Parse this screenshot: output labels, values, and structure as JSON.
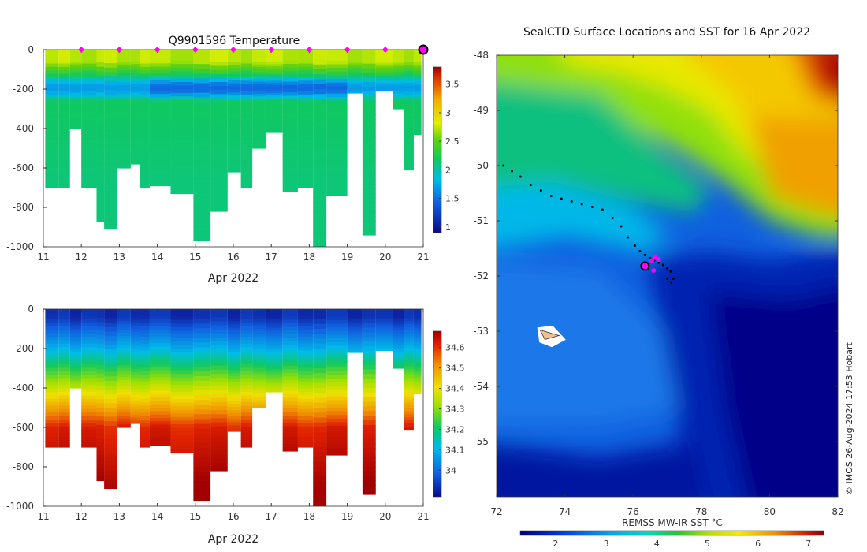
{
  "chart_data": [
    {
      "type": "heatmap",
      "title": "Q9901596  Temperature",
      "xlabel": "Apr 2022",
      "ylabel": "",
      "x_ticks": [
        "11",
        "12",
        "13",
        "14",
        "15",
        "16",
        "17",
        "18",
        "19",
        "20",
        "21"
      ],
      "y_ticks": [
        "0",
        "-200",
        "-400",
        "-600",
        "-800",
        "-1000"
      ],
      "xlim": [
        11,
        21
      ],
      "ylim": [
        -1000,
        0
      ],
      "colorbar_range": [
        0.9,
        3.8
      ],
      "colorbar_ticks": [
        "1",
        "1.5",
        "2",
        "2.5",
        "3",
        "3.5"
      ],
      "marker_days": [
        12,
        13,
        14,
        15,
        16,
        17,
        18,
        19,
        20
      ],
      "current_day": 21,
      "profile_max_depths": [
        700,
        700,
        400,
        700,
        870,
        910,
        600,
        580,
        700,
        690,
        730,
        970,
        820,
        620,
        700,
        500,
        420,
        720,
        700,
        1000,
        740,
        220,
        940,
        210,
        300,
        610,
        430
      ],
      "profile_start_days": [
        11.05,
        11.4,
        11.7,
        12,
        12.4,
        12.6,
        12.95,
        13.3,
        13.55,
        13.8,
        14.35,
        14.95,
        15.4,
        15.85,
        16.2,
        16.5,
        16.85,
        17.3,
        17.7,
        18.1,
        18.45,
        19,
        19.4,
        19.75,
        20.2,
        20.5,
        20.75
      ],
      "profile_end_days": [
        11.4,
        11.7,
        12,
        12.4,
        12.6,
        12.95,
        13.3,
        13.55,
        13.8,
        14.35,
        14.95,
        15.4,
        15.85,
        16.2,
        16.5,
        16.85,
        17.3,
        17.7,
        18.1,
        18.45,
        19,
        19.4,
        19.75,
        20.2,
        20.5,
        20.75,
        20.95
      ]
    },
    {
      "type": "heatmap",
      "title": "",
      "xlabel": "Apr 2022",
      "ylabel": "",
      "x_ticks": [
        "11",
        "12",
        "13",
        "14",
        "15",
        "16",
        "17",
        "18",
        "19",
        "20",
        "21"
      ],
      "y_ticks": [
        "0",
        "-200",
        "-400",
        "-600",
        "-800",
        "-1000"
      ],
      "xlim": [
        11,
        21
      ],
      "ylim": [
        -1000,
        0
      ],
      "colorbar_range": [
        33.87,
        34.68
      ],
      "colorbar_ticks": [
        "34",
        "34.1",
        "34.2",
        "34.3",
        "34.4",
        "34.5",
        "34.6"
      ]
    },
    {
      "type": "heatmap",
      "title": "SealCTD Surface Locations and SST for 16 Apr 2022",
      "xlabel": "",
      "ylabel": "",
      "x_ticks": [
        "72",
        "74",
        "76",
        "78",
        "80",
        "82"
      ],
      "y_ticks": [
        "-48",
        "-49",
        "-50",
        "-51",
        "-52",
        "-53",
        "-54",
        "-55"
      ],
      "xlim": [
        72,
        82
      ],
      "ylim": [
        -56,
        -48
      ],
      "colorbar_label": "REMSS MW-IR SST °C",
      "colorbar_range": [
        1.3,
        7.3
      ],
      "colorbar_ticks": [
        "2",
        "3",
        "4",
        "5",
        "6",
        "7"
      ],
      "track_lon": [
        72.2,
        72.45,
        72.7,
        73.0,
        73.3,
        73.6,
        73.9,
        74.2,
        74.5,
        74.8,
        75.1,
        75.4,
        75.65,
        75.85,
        76.05,
        76.2,
        76.35,
        76.5,
        76.62,
        76.75,
        76.88,
        77.0,
        77.1,
        77.18,
        77.12,
        77.0
      ],
      "track_lat": [
        -50.0,
        -50.1,
        -50.2,
        -50.35,
        -50.45,
        -50.55,
        -50.6,
        -50.65,
        -50.7,
        -50.75,
        -50.8,
        -50.95,
        -51.1,
        -51.3,
        -51.45,
        -51.55,
        -51.62,
        -51.68,
        -51.72,
        -51.76,
        -51.8,
        -51.86,
        -51.92,
        -52.05,
        -52.12,
        -52.05
      ],
      "current_lon": 76.35,
      "current_lat": -51.82,
      "land_lon": 73.6,
      "land_lat": -53.05
    }
  ],
  "credit": "© IMOS 26-Aug-2024 17:53 Hobart"
}
